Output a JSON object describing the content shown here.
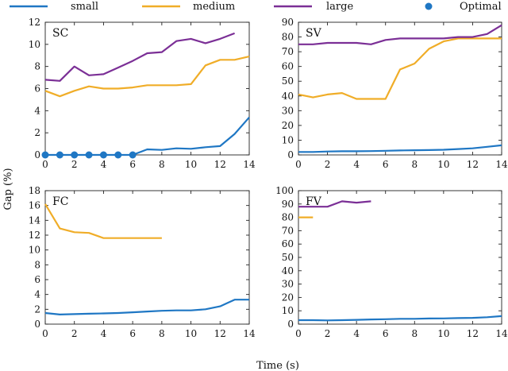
{
  "chart_data": {
    "type": "line",
    "xlabel": "Time (s)",
    "ylabel": "Gap (%)",
    "legend": {
      "placement": "top",
      "entries": [
        {
          "name": "small",
          "color": "#1f77c4",
          "marker": "line"
        },
        {
          "name": "medium",
          "color": "#f0ad28",
          "marker": "line"
        },
        {
          "name": "large",
          "color": "#7b2f96",
          "marker": "line"
        },
        {
          "name": "Optimal",
          "color": "#1f77c4",
          "marker": "dot"
        }
      ]
    },
    "panels": [
      {
        "label": "SC",
        "xlim": [
          0,
          14
        ],
        "ylim": [
          0,
          12
        ],
        "xticks": [
          "0",
          "2",
          "4",
          "6",
          "8",
          "10",
          "12",
          "14"
        ],
        "yticks": [
          "0",
          "2",
          "4",
          "6",
          "8",
          "10",
          "12"
        ],
        "series": [
          {
            "name": "small",
            "x": [
              0,
              1,
              2,
              3,
              4,
              5,
              6,
              7,
              8,
              9,
              10,
              11,
              12,
              13,
              14
            ],
            "values": [
              0,
              0,
              0,
              0,
              0,
              0,
              0,
              0.5,
              0.45,
              0.6,
              0.55,
              0.7,
              0.8,
              1.9,
              3.4
            ]
          },
          {
            "name": "medium",
            "x": [
              0,
              1,
              2,
              3,
              4,
              5,
              6,
              7,
              8,
              9,
              10,
              11,
              12,
              13,
              14
            ],
            "values": [
              5.8,
              5.3,
              5.8,
              6.2,
              6.0,
              6.0,
              6.1,
              6.3,
              6.3,
              6.3,
              6.4,
              8.1,
              8.6,
              8.6,
              8.9
            ]
          },
          {
            "name": "large",
            "x": [
              0,
              1,
              2,
              3,
              4,
              5,
              6,
              7,
              8,
              9,
              10,
              11,
              12,
              13
            ],
            "values": [
              6.8,
              6.7,
              8.0,
              7.2,
              7.3,
              7.9,
              8.5,
              9.2,
              9.3,
              10.3,
              10.5,
              10.1,
              10.5,
              11.0
            ]
          },
          {
            "name": "Optimal",
            "x": [
              0,
              1,
              2,
              3,
              4,
              5,
              6
            ],
            "values": [
              0,
              0,
              0,
              0,
              0,
              0,
              0
            ],
            "marker": "dot"
          }
        ]
      },
      {
        "label": "SV",
        "xlim": [
          0,
          14
        ],
        "ylim": [
          0,
          90
        ],
        "xticks": [
          "0",
          "2",
          "4",
          "6",
          "8",
          "10",
          "12",
          "14"
        ],
        "yticks": [
          "0",
          "10",
          "20",
          "30",
          "40",
          "50",
          "60",
          "70",
          "80",
          "90"
        ],
        "series": [
          {
            "name": "small",
            "x": [
              0,
              1,
              2,
              3,
              4,
              5,
              6,
              7,
              8,
              9,
              10,
              11,
              12,
              13,
              14
            ],
            "values": [
              2,
              2,
              2.3,
              2.5,
              2.5,
              2.6,
              2.8,
              3,
              3.2,
              3.3,
              3.5,
              4,
              4.5,
              5.5,
              6.5
            ]
          },
          {
            "name": "medium",
            "x": [
              0,
              1,
              2,
              3,
              4,
              5,
              6,
              7,
              8,
              9,
              10,
              11,
              12,
              13,
              14
            ],
            "values": [
              41,
              39,
              41,
              42,
              38,
              38,
              38,
              58,
              62,
              72,
              77,
              79,
              79,
              79,
              79
            ]
          },
          {
            "name": "large",
            "x": [
              0,
              1,
              2,
              3,
              4,
              5,
              6,
              7,
              8,
              9,
              10,
              11,
              12,
              13,
              14
            ],
            "values": [
              75,
              75,
              76,
              76,
              76,
              75,
              78,
              79,
              79,
              79,
              79,
              80,
              80,
              82,
              88
            ]
          }
        ]
      },
      {
        "label": "FC",
        "xlim": [
          0,
          14
        ],
        "ylim": [
          0,
          18
        ],
        "xticks": [
          "0",
          "2",
          "4",
          "6",
          "8",
          "10",
          "12",
          "14"
        ],
        "yticks": [
          "0",
          "2",
          "4",
          "6",
          "8",
          "10",
          "12",
          "14",
          "16",
          "18"
        ],
        "series": [
          {
            "name": "small",
            "x": [
              0,
              1,
              2,
              3,
              4,
              5,
              6,
              7,
              8,
              9,
              10,
              11,
              12,
              13,
              14
            ],
            "values": [
              1.5,
              1.3,
              1.35,
              1.4,
              1.45,
              1.5,
              1.6,
              1.7,
              1.8,
              1.85,
              1.85,
              2.0,
              2.4,
              3.3,
              3.3
            ]
          },
          {
            "name": "medium",
            "x": [
              0,
              1,
              2,
              3,
              4,
              5,
              6,
              7,
              8
            ],
            "values": [
              16.2,
              12.9,
              12.4,
              12.3,
              11.6,
              11.6,
              11.6,
              11.6,
              11.6
            ]
          }
        ]
      },
      {
        "label": "FV",
        "xlim": [
          0,
          14
        ],
        "ylim": [
          0,
          100
        ],
        "xticks": [
          "0",
          "2",
          "4",
          "6",
          "8",
          "10",
          "12",
          "14"
        ],
        "yticks": [
          "0",
          "10",
          "20",
          "30",
          "40",
          "50",
          "60",
          "70",
          "80",
          "90",
          "100"
        ],
        "series": [
          {
            "name": "small",
            "x": [
              0,
              1,
              2,
              3,
              4,
              5,
              6,
              7,
              8,
              9,
              10,
              11,
              12,
              13,
              14
            ],
            "values": [
              3,
              3,
              2.8,
              3,
              3.2,
              3.5,
              3.7,
              4,
              4,
              4.2,
              4.3,
              4.5,
              4.7,
              5.2,
              6
            ]
          },
          {
            "name": "medium",
            "x": [
              0,
              1
            ],
            "values": [
              80,
              80
            ]
          },
          {
            "name": "large",
            "x": [
              0,
              1,
              2,
              3,
              4,
              5
            ],
            "values": [
              88,
              88,
              88,
              92,
              91,
              92
            ]
          }
        ]
      }
    ]
  }
}
